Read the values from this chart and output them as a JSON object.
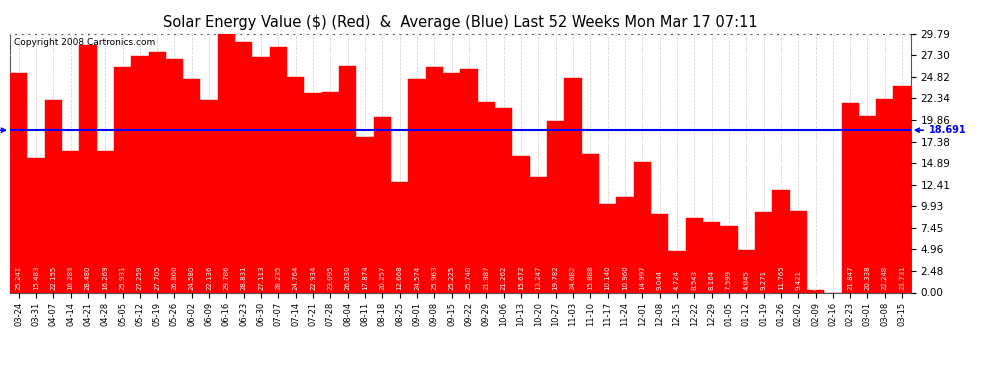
{
  "title": "Solar Energy Value ($) (Red)  &  Average (Blue) Last 52 Weeks Mon Mar 17 07:11",
  "copyright": "Copyright 2008 Cartronics.com",
  "average": 18.691,
  "bar_color": "#ff0000",
  "avg_line_color": "#0000ff",
  "background_color": "#ffffff",
  "categories": [
    "03-24",
    "03-31",
    "04-07",
    "04-14",
    "04-21",
    "04-28",
    "05-05",
    "05-12",
    "05-19",
    "05-26",
    "06-02",
    "06-09",
    "06-16",
    "06-23",
    "06-30",
    "07-07",
    "07-14",
    "07-21",
    "07-28",
    "08-04",
    "08-11",
    "08-18",
    "08-25",
    "09-01",
    "09-08",
    "09-15",
    "09-22",
    "09-29",
    "10-06",
    "10-13",
    "10-20",
    "10-27",
    "11-03",
    "11-10",
    "11-17",
    "11-24",
    "12-01",
    "12-08",
    "12-15",
    "12-22",
    "12-29",
    "01-05",
    "01-12",
    "01-19",
    "01-26",
    "02-02",
    "02-09",
    "02-16",
    "02-23",
    "03-01",
    "03-08",
    "03-15"
  ],
  "values": [
    25.241,
    15.483,
    22.155,
    16.289,
    28.48,
    16.269,
    25.931,
    27.259,
    27.705,
    26.86,
    24.58,
    22.136,
    29.786,
    28.831,
    27.113,
    28.235,
    24.764,
    22.934,
    23.095,
    26.03,
    17.874,
    20.257,
    12.668,
    24.574,
    25.963,
    25.225,
    25.74,
    21.987,
    21.262,
    15.672,
    13.247,
    19.782,
    24.682,
    15.888,
    10.14,
    10.96,
    14.997,
    9.044,
    4.724,
    8.543,
    8.164,
    7.599,
    4.845,
    9.271,
    11.765,
    9.421,
    0.317,
    0.0,
    21.847,
    20.338,
    22.248,
    23.731
  ],
  "ylim": [
    0,
    29.79
  ],
  "yticks": [
    0.0,
    2.48,
    4.96,
    7.45,
    9.93,
    12.41,
    14.89,
    17.38,
    19.86,
    22.34,
    24.82,
    27.3,
    29.79
  ],
  "figsize": [
    9.9,
    3.75
  ],
  "dpi": 100
}
